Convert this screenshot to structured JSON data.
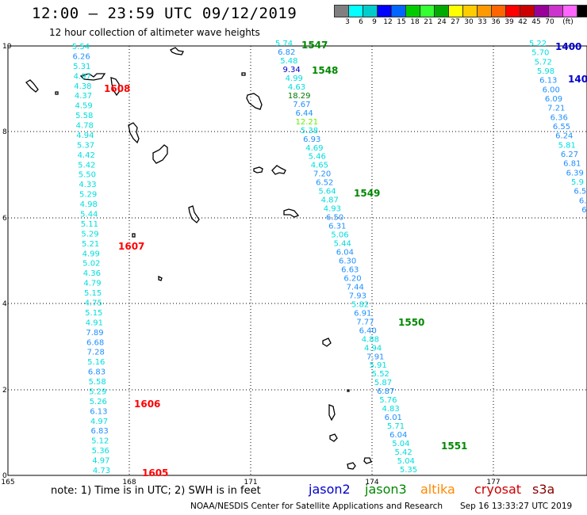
{
  "header": {
    "title": "12:00 – 23:59 UTC 09/12/2019",
    "subtitle": "12 hour collection of altimeter wave heights"
  },
  "scale": {
    "colors": [
      "#7f7f7f",
      "#00ffff",
      "#00cccc",
      "#0000ff",
      "#0066ff",
      "#00cc00",
      "#33ff33",
      "#00aa00",
      "#ffff00",
      "#ffcc00",
      "#ff9900",
      "#ff6600",
      "#ff0000",
      "#cc0000",
      "#990099",
      "#cc33cc",
      "#ff66ff",
      "#000000"
    ],
    "labels": [
      "3",
      "6",
      "9",
      "12",
      "15",
      "18",
      "21",
      "24",
      "27",
      "30",
      "33",
      "36",
      "39",
      "42",
      "45",
      "70",
      "(ft)"
    ]
  },
  "axes": {
    "x_ticks": [
      "165",
      "168",
      "171",
      "174",
      "177"
    ],
    "y_ticks": [
      "10",
      "8",
      "6",
      "4",
      "2",
      "0"
    ]
  },
  "swh_colors": {
    "low": "#00dddd",
    "mid": "#1e90ff",
    "nine": "#0000cc",
    "eighteen": "#007700",
    "twelve": "#66ee00"
  },
  "tracks": [
    {
      "id": "track-a",
      "values": [
        "5.54",
        "6.26",
        "5.31",
        "4.97",
        "4.38",
        "4.37",
        "4.59",
        "5.58",
        "4.78",
        "4.94",
        "5.37",
        "4.42",
        "5.42",
        "5.50",
        "4.33",
        "5.29",
        "4.98",
        "5.44",
        "5.11",
        "5.29",
        "5.21",
        "4.99",
        "5.02",
        "4.36",
        "4.79",
        "5.15",
        "4.75",
        "5.15",
        "4.91",
        "7.89",
        "6.68",
        "7.28",
        "5.16",
        "6.83",
        "5.58",
        "5.29",
        "5.26",
        "6.13",
        "4.97",
        "6.83",
        "5.12",
        "5.36",
        "4.97",
        "4.73"
      ]
    },
    {
      "id": "track-b",
      "values": [
        "5.74",
        "6.82",
        "5.48",
        "9.34",
        "4.99",
        "4.63",
        "18.29",
        "7.67",
        "6.44",
        "12.21",
        "5.38",
        "6.93",
        "4.69",
        "5.46",
        "4.65",
        "7.20",
        "6.52",
        "5.64",
        "4.87",
        "4.93",
        "6.50",
        "6.31",
        "5.06",
        "5.44",
        "6.04",
        "6.30",
        "6.63",
        "6.20",
        "7.44",
        "7.93",
        "5.82",
        "6.91",
        "7.77",
        "6.40",
        "4.88",
        "4.94",
        "7.91",
        "5.91",
        "5.52",
        "5.87",
        "6.87",
        "5.76",
        "4.83",
        "6.01",
        "5.71",
        "6.04",
        "5.04",
        "5.42",
        "5.04",
        "5.35"
      ]
    },
    {
      "id": "track-c",
      "values": [
        "5.22",
        "5.70",
        "5.72",
        "5.98",
        "6.13",
        "6.00",
        "6.09",
        "7.21",
        "6.36",
        "6.55",
        "6.24",
        "5.81",
        "6.27",
        "6.81",
        "6.39",
        "5.9",
        "6.5",
        "6.",
        "6."
      ]
    }
  ],
  "passes": [
    {
      "label": "1608",
      "color": "#ff0000"
    },
    {
      "label": "1607",
      "color": "#ff0000"
    },
    {
      "label": "1606",
      "color": "#ff0000"
    },
    {
      "label": "1605",
      "color": "#ff0000"
    },
    {
      "label": "1547",
      "color": "#008800"
    },
    {
      "label": "1548",
      "color": "#008800"
    },
    {
      "label": "1549",
      "color": "#008800"
    },
    {
      "label": "1550",
      "color": "#008800"
    },
    {
      "label": "1551",
      "color": "#008800"
    },
    {
      "label": "1400",
      "color": "#0000cc"
    },
    {
      "label": "140",
      "color": "#0000cc"
    }
  ],
  "footer": {
    "note": "note:  1) Time is in UTC;  2) SWH is in feet",
    "credit": "NOAA/NESDIS Center for Satellite Applications and Research",
    "timestamp": "Sep 16 13:33:27 UTC 2019"
  },
  "legend": [
    {
      "label": "jason2",
      "color": "#0000cc"
    },
    {
      "label": "jason3",
      "color": "#008800"
    },
    {
      "label": "altika",
      "color": "#ff8800"
    },
    {
      "label": "cryosat",
      "color": "#cc0000"
    },
    {
      "label": "s3a",
      "color": "#880000"
    }
  ]
}
